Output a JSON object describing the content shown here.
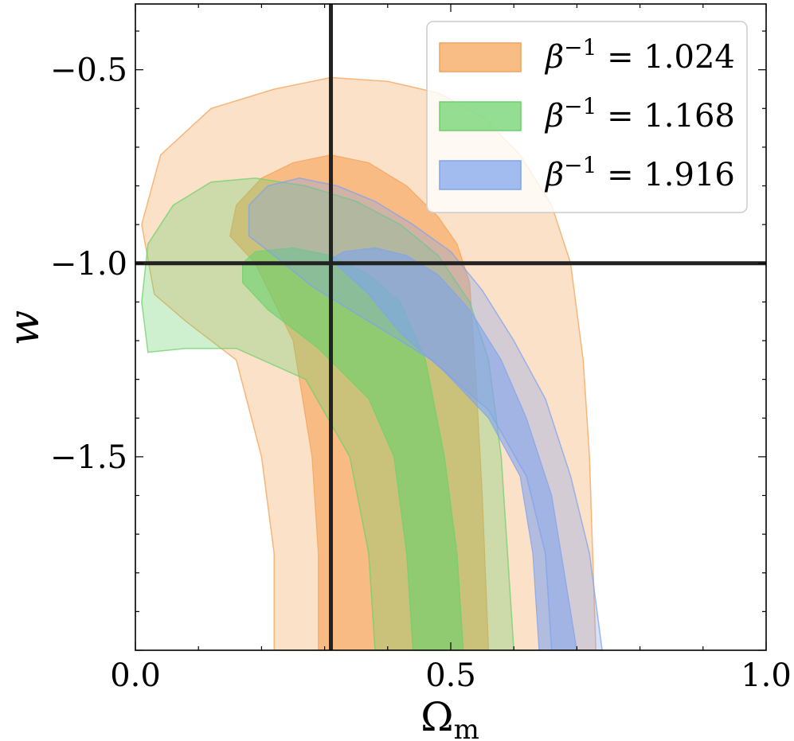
{
  "chart_data": {
    "type": "contour",
    "xlabel": "Ω",
    "xlabel_sub": "m",
    "ylabel": "w",
    "xlim": [
      0.0,
      1.0
    ],
    "ylim": [
      -2.0,
      -0.33
    ],
    "xticks": [
      "0.0",
      "0.5",
      "1.0"
    ],
    "yticks": [
      "−0.5",
      "−1.0",
      "−1.5"
    ],
    "xtick_values": [
      0.0,
      0.5,
      1.0
    ],
    "ytick_values": [
      -0.5,
      -1.0,
      -1.5
    ],
    "reference_lines": {
      "x": 0.31,
      "y": -1.0
    },
    "legend_position": "top-right",
    "grid": false,
    "series": [
      {
        "label_symbol": "β",
        "label_exp": "−1",
        "label_value": "= 1.024",
        "color": "#f5a256",
        "contours": {
          "outer": [
            [
              0.22,
              -2.0
            ],
            [
              0.22,
              -1.75
            ],
            [
              0.2,
              -1.5
            ],
            [
              0.16,
              -1.25
            ],
            [
              0.08,
              -1.15
            ],
            [
              0.03,
              -1.08
            ],
            [
              0.01,
              -0.9
            ],
            [
              0.04,
              -0.72
            ],
            [
              0.12,
              -0.6
            ],
            [
              0.22,
              -0.55
            ],
            [
              0.31,
              -0.52
            ],
            [
              0.4,
              -0.53
            ],
            [
              0.48,
              -0.56
            ],
            [
              0.55,
              -0.62
            ],
            [
              0.61,
              -0.72
            ],
            [
              0.66,
              -0.85
            ],
            [
              0.69,
              -1.0
            ],
            [
              0.71,
              -1.25
            ],
            [
              0.72,
              -1.5
            ],
            [
              0.725,
              -1.75
            ],
            [
              0.73,
              -2.0
            ]
          ],
          "inner": [
            [
              0.29,
              -2.0
            ],
            [
              0.29,
              -1.75
            ],
            [
              0.28,
              -1.5
            ],
            [
              0.25,
              -1.2
            ],
            [
              0.19,
              -1.0
            ],
            [
              0.15,
              -0.93
            ],
            [
              0.16,
              -0.85
            ],
            [
              0.2,
              -0.78
            ],
            [
              0.25,
              -0.74
            ],
            [
              0.31,
              -0.72
            ],
            [
              0.37,
              -0.74
            ],
            [
              0.43,
              -0.8
            ],
            [
              0.48,
              -0.88
            ],
            [
              0.51,
              -0.95
            ],
            [
              0.53,
              -1.05
            ],
            [
              0.54,
              -1.3
            ],
            [
              0.55,
              -1.6
            ],
            [
              0.56,
              -2.0
            ]
          ]
        }
      },
      {
        "label_symbol": "β",
        "label_exp": "−1",
        "label_value": "= 1.168",
        "color": "#6bd16b",
        "contours": {
          "outer": [
            [
              0.38,
              -2.0
            ],
            [
              0.37,
              -1.75
            ],
            [
              0.34,
              -1.5
            ],
            [
              0.27,
              -1.3
            ],
            [
              0.16,
              -1.22
            ],
            [
              0.08,
              -1.22
            ],
            [
              0.02,
              -1.23
            ],
            [
              0.01,
              -1.1
            ],
            [
              0.02,
              -0.95
            ],
            [
              0.06,
              -0.85
            ],
            [
              0.12,
              -0.79
            ],
            [
              0.19,
              -0.78
            ],
            [
              0.27,
              -0.8
            ],
            [
              0.35,
              -0.84
            ],
            [
              0.42,
              -0.9
            ],
            [
              0.48,
              -0.98
            ],
            [
              0.53,
              -1.1
            ],
            [
              0.56,
              -1.25
            ],
            [
              0.58,
              -1.5
            ],
            [
              0.59,
              -1.75
            ],
            [
              0.6,
              -2.0
            ]
          ],
          "inner": [
            [
              0.44,
              -2.0
            ],
            [
              0.43,
              -1.75
            ],
            [
              0.41,
              -1.5
            ],
            [
              0.37,
              -1.35
            ],
            [
              0.29,
              -1.22
            ],
            [
              0.21,
              -1.12
            ],
            [
              0.17,
              -1.05
            ],
            [
              0.17,
              -1.0
            ],
            [
              0.19,
              -0.97
            ],
            [
              0.25,
              -0.96
            ],
            [
              0.31,
              -0.98
            ],
            [
              0.37,
              -1.03
            ],
            [
              0.42,
              -1.1
            ],
            [
              0.46,
              -1.25
            ],
            [
              0.49,
              -1.5
            ],
            [
              0.51,
              -1.75
            ],
            [
              0.52,
              -2.0
            ]
          ]
        }
      },
      {
        "label_symbol": "β",
        "label_exp": "−1",
        "label_value": "= 1.916",
        "color": "#7fa3ee",
        "contours": {
          "outer": [
            [
              0.66,
              -2.0
            ],
            [
              0.65,
              -1.75
            ],
            [
              0.62,
              -1.55
            ],
            [
              0.56,
              -1.38
            ],
            [
              0.47,
              -1.25
            ],
            [
              0.37,
              -1.15
            ],
            [
              0.28,
              -1.06
            ],
            [
              0.22,
              -0.98
            ],
            [
              0.18,
              -0.93
            ],
            [
              0.18,
              -0.85
            ],
            [
              0.21,
              -0.8
            ],
            [
              0.26,
              -0.78
            ],
            [
              0.32,
              -0.8
            ],
            [
              0.38,
              -0.84
            ],
            [
              0.44,
              -0.9
            ],
            [
              0.5,
              -0.97
            ],
            [
              0.55,
              -1.07
            ],
            [
              0.6,
              -1.2
            ],
            [
              0.65,
              -1.35
            ],
            [
              0.69,
              -1.55
            ],
            [
              0.72,
              -1.75
            ],
            [
              0.74,
              -2.0
            ]
          ],
          "inner": [
            [
              0.64,
              -2.0
            ],
            [
              0.63,
              -1.75
            ],
            [
              0.61,
              -1.55
            ],
            [
              0.56,
              -1.4
            ],
            [
              0.49,
              -1.28
            ],
            [
              0.42,
              -1.18
            ],
            [
              0.37,
              -1.08
            ],
            [
              0.33,
              -1.02
            ],
            [
              0.31,
              -0.99
            ],
            [
              0.33,
              -0.97
            ],
            [
              0.38,
              -0.96
            ],
            [
              0.43,
              -0.98
            ],
            [
              0.48,
              -1.03
            ],
            [
              0.53,
              -1.12
            ],
            [
              0.58,
              -1.25
            ],
            [
              0.62,
              -1.4
            ],
            [
              0.66,
              -1.6
            ],
            [
              0.68,
              -1.8
            ],
            [
              0.7,
              -2.0
            ]
          ]
        }
      }
    ]
  }
}
